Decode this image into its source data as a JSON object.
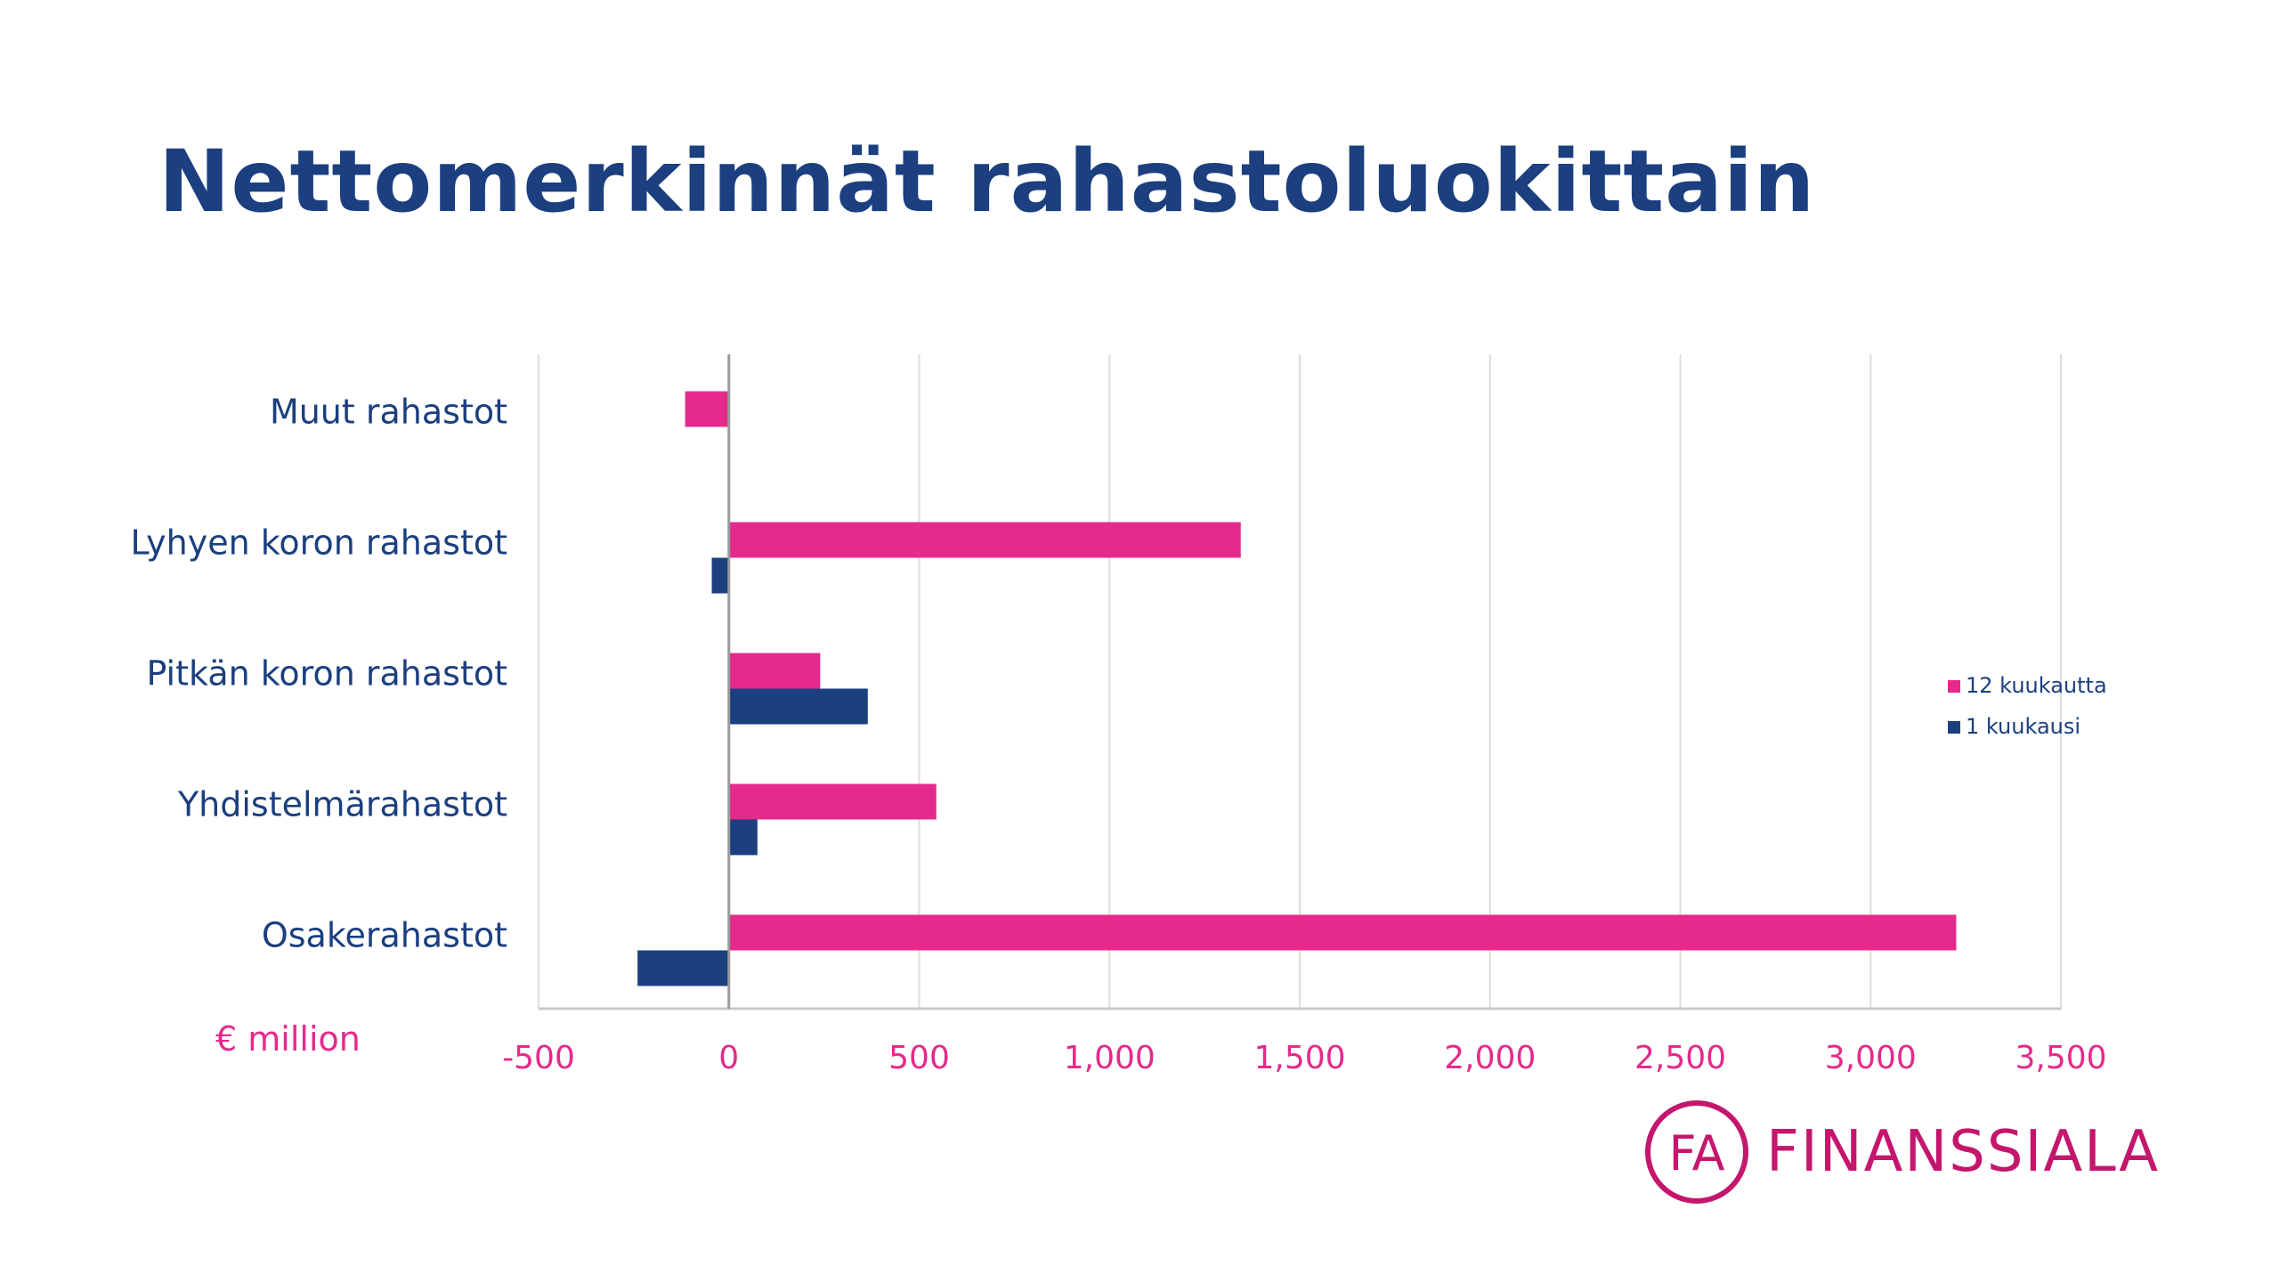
{
  "title": "Nettomerkinnät rahastoluokittain",
  "colors": {
    "title": "#1b3f7f",
    "series_12": "#e52a8b",
    "series_1": "#1b3f7f",
    "tick_labels": "#e52a8b",
    "grid": "#dedede",
    "logo": "#c4166d"
  },
  "chart_data": {
    "type": "bar",
    "orientation": "horizontal",
    "categories": [
      "Muut rahastot",
      "Lyhyen koron rahastot",
      "Pitkän koron rahastot",
      "Yhdistelmärahastot",
      "Osakerahastot"
    ],
    "series": [
      {
        "name": "12 kuukautta",
        "values": [
          -115,
          1345,
          240,
          545,
          3225
        ]
      },
      {
        "name": "1 kuukausi",
        "values": [
          0,
          -45,
          365,
          75,
          -240
        ]
      }
    ],
    "x_ticks": [
      "-500",
      "0",
      "500",
      "1,000",
      "1,500",
      "2,000",
      "2,500",
      "3,000",
      "3,500"
    ],
    "x_tick_values": [
      -500,
      0,
      500,
      1000,
      1500,
      2000,
      2500,
      3000,
      3500
    ],
    "xlim": [
      -500,
      3500
    ],
    "unit_label": "€ million",
    "grid": true,
    "legend_position": "right"
  },
  "logo": {
    "text": "FINANSSIALA",
    "mark_text": "FA"
  }
}
